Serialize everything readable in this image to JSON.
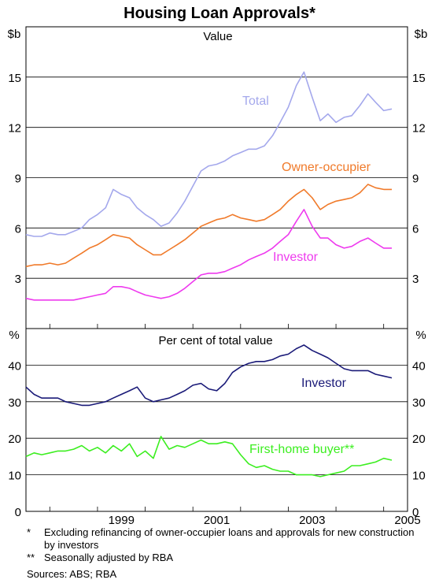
{
  "chart_data": {
    "title": "Housing Loan Approvals*",
    "x_ticks": [
      "1999",
      "2001",
      "2003",
      "2005"
    ],
    "grid": true,
    "panels": [
      {
        "type": "line",
        "subtitle": "Value",
        "unit": "$b",
        "ylim": [
          0,
          18
        ],
        "yticks": [
          "3",
          "6",
          "9",
          "12",
          "15"
        ],
        "series": [
          {
            "name": "Total",
            "color": "#a4a8ec",
            "x": [
              1997.5,
              1997.67,
              1997.83,
              1998.0,
              1998.17,
              1998.33,
              1998.5,
              1998.67,
              1998.83,
              1999.0,
              1999.17,
              1999.33,
              1999.5,
              1999.67,
              1999.83,
              2000.0,
              2000.17,
              2000.33,
              2000.5,
              2000.67,
              2000.83,
              2001.0,
              2001.17,
              2001.33,
              2001.5,
              2001.67,
              2001.83,
              2002.0,
              2002.17,
              2002.33,
              2002.5,
              2002.67,
              2002.83,
              2003.0,
              2003.17,
              2003.33,
              2003.5,
              2003.67,
              2003.83,
              2004.0,
              2004.17,
              2004.33,
              2004.5,
              2004.67,
              2004.83,
              2005.0,
              2005.17
            ],
            "values": [
              5.6,
              5.5,
              5.5,
              5.7,
              5.6,
              5.6,
              5.8,
              6.0,
              6.5,
              6.8,
              7.2,
              8.3,
              8.0,
              7.8,
              7.2,
              6.8,
              6.5,
              6.1,
              6.3,
              6.9,
              7.6,
              8.5,
              9.4,
              9.7,
              9.8,
              10.0,
              10.3,
              10.5,
              10.7,
              10.7,
              10.9,
              11.5,
              12.3,
              13.2,
              14.5,
              15.3,
              13.8,
              12.4,
              12.8,
              12.3,
              12.6,
              12.7,
              13.3,
              14.0,
              13.5,
              13.0,
              13.1
            ]
          },
          {
            "name": "Owner-occupier",
            "color": "#f07a2a",
            "x": [
              1997.5,
              1997.67,
              1997.83,
              1998.0,
              1998.17,
              1998.33,
              1998.5,
              1998.67,
              1998.83,
              1999.0,
              1999.17,
              1999.33,
              1999.5,
              1999.67,
              1999.83,
              2000.0,
              2000.17,
              2000.33,
              2000.5,
              2000.67,
              2000.83,
              2001.0,
              2001.17,
              2001.33,
              2001.5,
              2001.67,
              2001.83,
              2002.0,
              2002.17,
              2002.33,
              2002.5,
              2002.67,
              2002.83,
              2003.0,
              2003.17,
              2003.33,
              2003.5,
              2003.67,
              2003.83,
              2004.0,
              2004.17,
              2004.33,
              2004.5,
              2004.67,
              2004.83,
              2005.0,
              2005.17
            ],
            "values": [
              3.7,
              3.8,
              3.8,
              3.9,
              3.8,
              3.9,
              4.2,
              4.5,
              4.8,
              5.0,
              5.3,
              5.6,
              5.5,
              5.4,
              5.0,
              4.7,
              4.4,
              4.4,
              4.7,
              5.0,
              5.3,
              5.7,
              6.1,
              6.3,
              6.5,
              6.6,
              6.8,
              6.6,
              6.5,
              6.4,
              6.5,
              6.8,
              7.1,
              7.6,
              8.0,
              8.3,
              7.8,
              7.1,
              7.4,
              7.6,
              7.7,
              7.8,
              8.1,
              8.6,
              8.4,
              8.3,
              8.3
            ]
          },
          {
            "name": "Investor",
            "color": "#ee3aee",
            "x": [
              1997.5,
              1997.67,
              1997.83,
              1998.0,
              1998.17,
              1998.33,
              1998.5,
              1998.67,
              1998.83,
              1999.0,
              1999.17,
              1999.33,
              1999.5,
              1999.67,
              1999.83,
              2000.0,
              2000.17,
              2000.33,
              2000.5,
              2000.67,
              2000.83,
              2001.0,
              2001.17,
              2001.33,
              2001.5,
              2001.67,
              2001.83,
              2002.0,
              2002.17,
              2002.33,
              2002.5,
              2002.67,
              2002.83,
              2003.0,
              2003.17,
              2003.33,
              2003.5,
              2003.67,
              2003.83,
              2004.0,
              2004.17,
              2004.33,
              2004.5,
              2004.67,
              2004.83,
              2005.0,
              2005.17
            ],
            "values": [
              1.8,
              1.7,
              1.7,
              1.7,
              1.7,
              1.7,
              1.7,
              1.8,
              1.9,
              2.0,
              2.1,
              2.5,
              2.5,
              2.4,
              2.2,
              2.0,
              1.9,
              1.8,
              1.9,
              2.1,
              2.4,
              2.8,
              3.2,
              3.3,
              3.3,
              3.4,
              3.6,
              3.8,
              4.1,
              4.3,
              4.5,
              4.8,
              5.2,
              5.6,
              6.4,
              7.1,
              6.1,
              5.4,
              5.4,
              5.0,
              4.8,
              4.9,
              5.2,
              5.4,
              5.1,
              4.8,
              4.8
            ]
          }
        ]
      },
      {
        "type": "line",
        "subtitle": "Per cent of total value",
        "unit": "%",
        "ylim": [
          0,
          50
        ],
        "yticks": [
          "0",
          "10",
          "20",
          "30",
          "40"
        ],
        "series": [
          {
            "name": "Investor",
            "color": "#1a1a78",
            "x": [
              1997.5,
              1997.67,
              1997.83,
              1998.0,
              1998.17,
              1998.33,
              1998.5,
              1998.67,
              1998.83,
              1999.0,
              1999.17,
              1999.33,
              1999.5,
              1999.67,
              1999.83,
              2000.0,
              2000.17,
              2000.33,
              2000.5,
              2000.67,
              2000.83,
              2001.0,
              2001.17,
              2001.33,
              2001.5,
              2001.67,
              2001.83,
              2002.0,
              2002.17,
              2002.33,
              2002.5,
              2002.67,
              2002.83,
              2003.0,
              2003.17,
              2003.33,
              2003.5,
              2003.67,
              2003.83,
              2004.0,
              2004.17,
              2004.33,
              2004.5,
              2004.67,
              2004.83,
              2005.0,
              2005.17
            ],
            "values": [
              34,
              32,
              31,
              31,
              31,
              30,
              29.5,
              29,
              29,
              29.5,
              30,
              31,
              32,
              33,
              34,
              31,
              30,
              30.5,
              31,
              32,
              33,
              34.5,
              35,
              33.5,
              33,
              35,
              38,
              39.5,
              40.5,
              41,
              41,
              41.5,
              42.5,
              43,
              44.5,
              45.5,
              44,
              43,
              42,
              40.5,
              39,
              38.5,
              38.5,
              38.5,
              37.5,
              37,
              36.5
            ]
          },
          {
            "name": "First-home buyer**",
            "color": "#3cee20",
            "x": [
              1997.5,
              1997.67,
              1997.83,
              1998.0,
              1998.17,
              1998.33,
              1998.5,
              1998.67,
              1998.83,
              1999.0,
              1999.17,
              1999.33,
              1999.5,
              1999.67,
              1999.83,
              2000.0,
              2000.17,
              2000.33,
              2000.5,
              2000.67,
              2000.83,
              2001.0,
              2001.17,
              2001.33,
              2001.5,
              2001.67,
              2001.83,
              2002.0,
              2002.17,
              2002.33,
              2002.5,
              2002.67,
              2002.83,
              2003.0,
              2003.17,
              2003.33,
              2003.5,
              2003.67,
              2003.83,
              2004.0,
              2004.17,
              2004.33,
              2004.5,
              2004.67,
              2004.83,
              2005.0,
              2005.17
            ],
            "values": [
              15,
              16,
              15.5,
              16,
              16.5,
              16.5,
              17,
              18,
              16.5,
              17.5,
              16,
              18,
              16.5,
              18.5,
              15,
              16.5,
              14.5,
              20.5,
              17,
              18,
              17.5,
              18.5,
              19.5,
              18.5,
              18.5,
              19,
              18.5,
              15.5,
              13,
              12,
              12.5,
              11.5,
              11,
              11,
              10,
              10,
              10,
              9.5,
              10,
              10.5,
              11,
              12.5,
              12.5,
              13,
              13.5,
              14.5,
              14
            ]
          }
        ]
      }
    ],
    "annotations": [
      {
        "mark": "*",
        "text": "Excluding refinancing of owner-occupier loans and approvals for new construction by investors"
      },
      {
        "mark": "**",
        "text": "Seasonally adjusted by RBA"
      }
    ],
    "sources": "Sources: ABS; RBA"
  }
}
